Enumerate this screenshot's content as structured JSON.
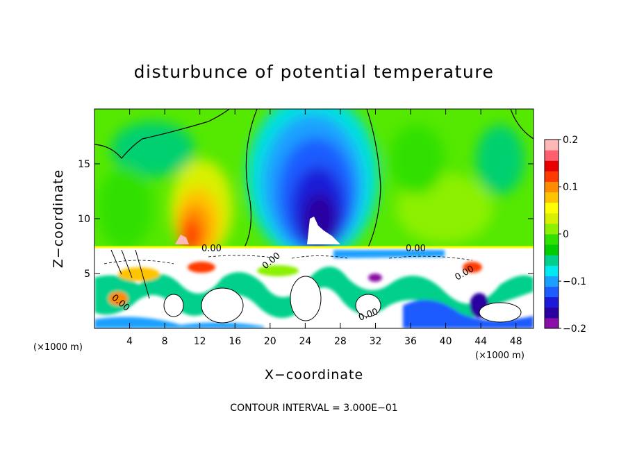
{
  "chart_data": {
    "type": "heatmap",
    "title": "disturbunce of potential temperature",
    "xlabel": "X−coordinate",
    "ylabel": "Z−coordinate",
    "x_unit": "(×1000 m)",
    "z_unit": "(×1000 m)",
    "xlim": [
      0,
      50
    ],
    "ylim": [
      0,
      20
    ],
    "x_ticks": [
      4,
      8,
      12,
      16,
      20,
      24,
      28,
      32,
      36,
      40,
      44,
      48
    ],
    "y_ticks": [
      5,
      10,
      15
    ],
    "colorbar": {
      "vmin": -0.2,
      "vmax": 0.2,
      "ticks": [
        "0.2",
        "0.1",
        "0",
        "−0.1",
        "−0.2"
      ],
      "tick_values": [
        0.2,
        0.1,
        0,
        -0.1,
        -0.2
      ],
      "colors": [
        "#8a0fa6",
        "#2a00a0",
        "#1a1ad8",
        "#1e5cff",
        "#1aa0ff",
        "#00e8f0",
        "#00d08c",
        "#00cc00",
        "#30e000",
        "#8cf000",
        "#d8f000",
        "#ffff00",
        "#ffc400",
        "#ff8c00",
        "#ff3a00",
        "#e80000",
        "#ff6070",
        "#ffb8b8"
      ]
    },
    "contour_labels": [
      "0.00",
      "0.00",
      "0.00",
      "0.00",
      "0.00",
      "0.00"
    ],
    "features": [
      {
        "name": "positive anomaly",
        "x_center": 11.0,
        "z_center": 9.5,
        "peak": 0.18
      },
      {
        "name": "negative anomaly",
        "x_center": 25.0,
        "z_center": 10.5,
        "peak": -0.19
      },
      {
        "name": "layer boundary",
        "z": 7.3
      }
    ],
    "footer": "CONTOUR INTERVAL = 3.000E−01"
  }
}
